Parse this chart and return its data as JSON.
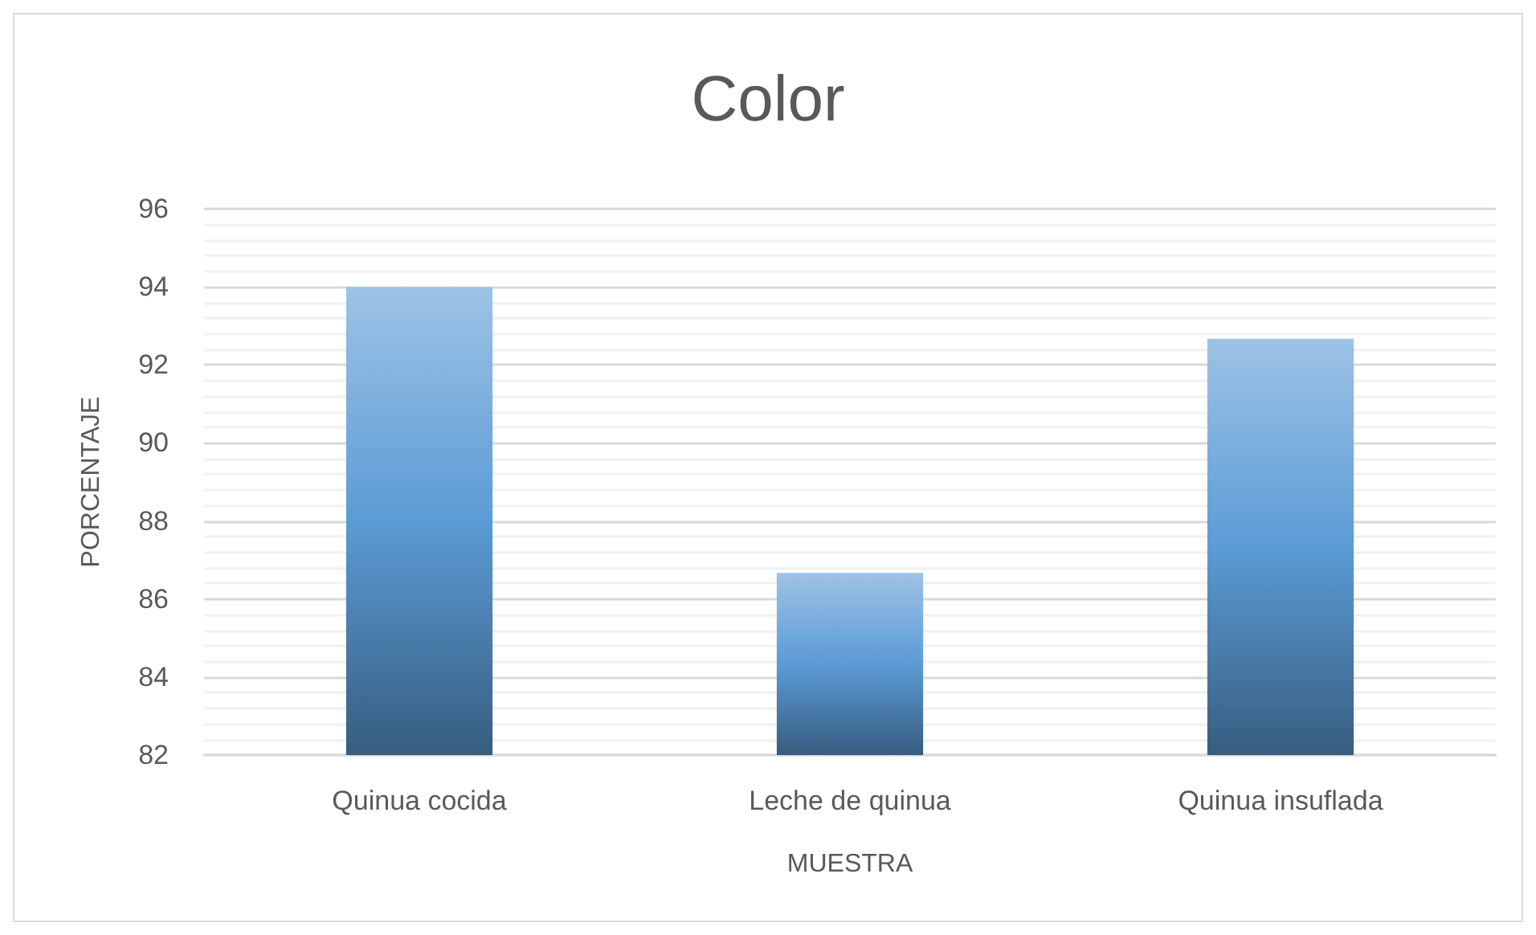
{
  "chart_data": {
    "type": "bar",
    "title": "Color",
    "xlabel": "MUESTRA",
    "ylabel": "PORCENTAJE",
    "categories": [
      "Quinua cocida",
      "Leche de quinua",
      "Quinua insuflada"
    ],
    "values": [
      94,
      86.67,
      92.67
    ],
    "color": "#5b9bd5",
    "ylim": [
      82,
      96
    ],
    "yticks": [
      82,
      84,
      86,
      88,
      90,
      92,
      94,
      96
    ],
    "grid": "y"
  }
}
